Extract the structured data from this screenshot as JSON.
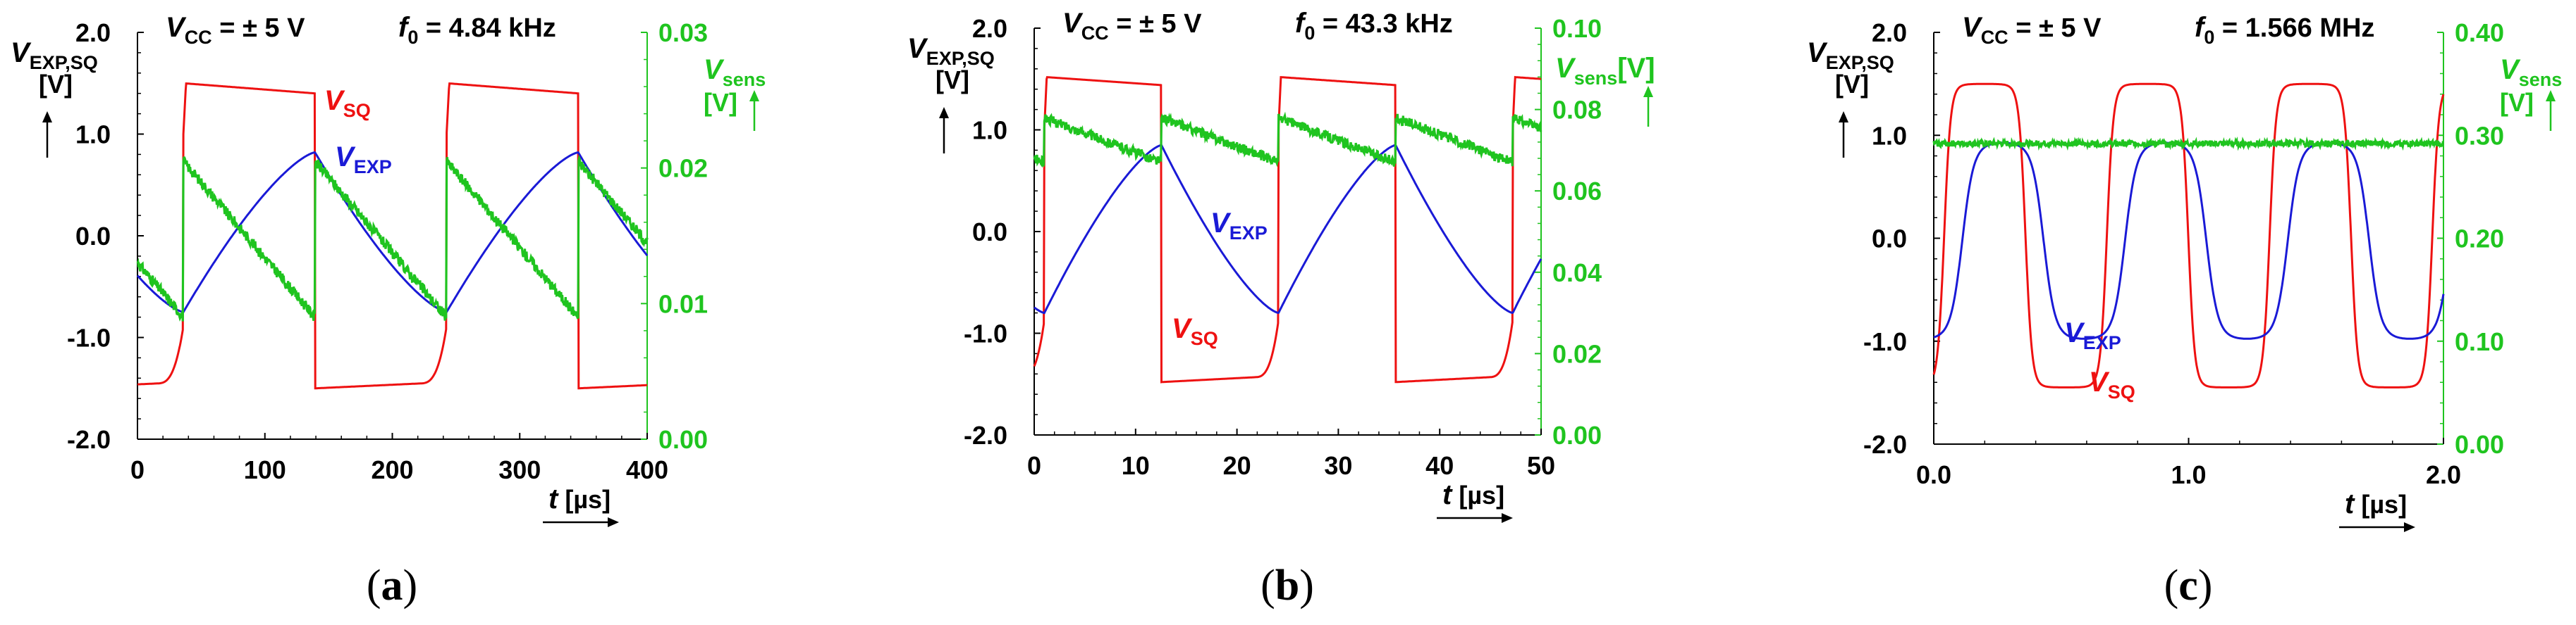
{
  "figure": {
    "colors": {
      "sq": "#ee1111",
      "exp": "#1a1ad6",
      "sens": "#1fc41f",
      "axis": "#000000",
      "right_axis": "#1fc41f"
    },
    "labels": {
      "vcc": "V",
      "vcc_sub": "CC",
      "vcc_value": "= ± 5 V",
      "f0": "f",
      "f0_sub": "0",
      "left_axis": "V",
      "left_axis_sub": "EXP,SQ",
      "left_axis_unit": "[V]",
      "right_axis": "V",
      "right_axis_sub": "sens",
      "right_axis_unit": "[V]",
      "sq": "V",
      "sq_sub": "SQ",
      "exp": "V",
      "exp_sub": "EXP",
      "x_axis": "t",
      "x_axis_unit": "[µs]"
    }
  },
  "chart_data": [
    {
      "id": "a",
      "type": "line",
      "caption": "a",
      "f0_value": "= 4.84 kHz",
      "right_unit_inline": false,
      "xlim": [
        0,
        400
      ],
      "x_ticks": [
        "0",
        "100",
        "200",
        "300",
        "400"
      ],
      "ylim": [
        -2.0,
        2.0
      ],
      "y_ticks": [
        "-2.0",
        "-1.0",
        "0.0",
        "1.0",
        "2.0"
      ],
      "y2lim": [
        0.0,
        0.03
      ],
      "y2_ticks": [
        "0.00",
        "0.01",
        "0.02",
        "0.03"
      ],
      "period": 206.6,
      "phase": 36,
      "series": [
        {
          "name": "VSQ",
          "axis": "left",
          "kind": "square",
          "high": 1.5,
          "low": -1.5,
          "droop": 0.1
        },
        {
          "name": "VEXP",
          "axis": "left",
          "kind": "triangle",
          "max": 0.82,
          "min": -0.75
        },
        {
          "name": "Vsens",
          "axis": "right",
          "kind": "sawtooth",
          "start": 0.0205,
          "end": 0.009,
          "base": 0.01,
          "noise": 0.0004
        }
      ]
    },
    {
      "id": "b",
      "type": "line",
      "caption": "b",
      "f0_value": "= 43.3 kHz",
      "right_unit_inline": true,
      "xlim": [
        0,
        50
      ],
      "x_ticks": [
        "0",
        "10",
        "20",
        "30",
        "40",
        "50"
      ],
      "ylim": [
        -2.0,
        2.0
      ],
      "y_ticks": [
        "-2.0",
        "-1.0",
        "0.0",
        "1.0",
        "2.0"
      ],
      "y2lim": [
        0.0,
        0.1
      ],
      "y2_ticks": [
        "0.00",
        "0.02",
        "0.04",
        "0.06",
        "0.08",
        "0.10"
      ],
      "period": 23.1,
      "phase": 1,
      "series": [
        {
          "name": "VSQ",
          "axis": "left",
          "kind": "square",
          "high": 1.52,
          "low": -1.48,
          "droop": 0.08
        },
        {
          "name": "VEXP",
          "axis": "left",
          "kind": "triangle",
          "max": 0.85,
          "min": -0.8
        },
        {
          "name": "Vsens",
          "axis": "right",
          "kind": "sawtooth",
          "start": 0.078,
          "end": 0.067,
          "base": 0.071,
          "noise": 0.0012
        }
      ]
    },
    {
      "id": "c",
      "type": "line",
      "caption": "c",
      "f0_value": "= 1.566 MHz",
      "right_unit_inline": false,
      "xlim": [
        0,
        2.0
      ],
      "x_ticks": [
        "0.0",
        "1.0",
        "2.0"
      ],
      "ylim": [
        -2.0,
        2.0
      ],
      "y_ticks": [
        "-2.0",
        "-1.0",
        "0.0",
        "1.0",
        "2.0"
      ],
      "y2lim": [
        0.0,
        0.4
      ],
      "y2_ticks": [
        "0.00",
        "0.10",
        "0.20",
        "0.30",
        "0.40"
      ],
      "period": 0.6386,
      "phase": 0.0,
      "series": [
        {
          "name": "VSQ",
          "axis": "left",
          "kind": "smooth_square",
          "high": 1.5,
          "low": -1.45
        },
        {
          "name": "VEXP",
          "axis": "left",
          "kind": "rc",
          "max": 0.95,
          "min": -1.0
        },
        {
          "name": "Vsens",
          "axis": "right",
          "kind": "flat",
          "start": 0.292,
          "end": 0.292,
          "base": 0.292,
          "noise": 0.003
        }
      ]
    }
  ]
}
